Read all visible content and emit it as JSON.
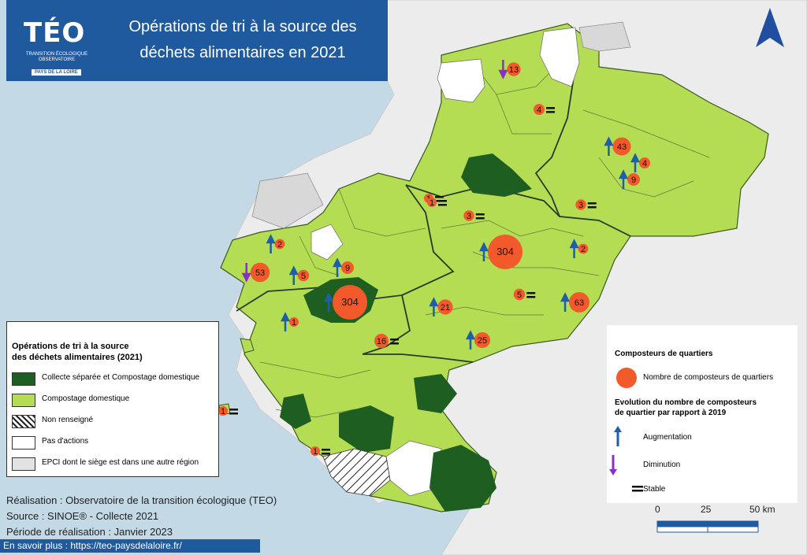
{
  "header": {
    "logo_main": "TÉO",
    "logo_sub": "TRANSITION ÉCOLOGIQUE OBSERVATOIRE",
    "logo_region": "PAYS DE LA LOIRE",
    "title_line1": "Opérations de tri à la source des",
    "title_line2": "déchets alimentaires en 2021"
  },
  "legend": {
    "title_line1": "Opérations de tri à la source",
    "title_line2": "des déchets alimentaires (2021)",
    "items": [
      {
        "label": "Collecte séparée et Compostage domestique",
        "color": "#1e5e20"
      },
      {
        "label": "Compostage domestique",
        "color": "#b5dd53"
      },
      {
        "label": "Non renseigné",
        "color": "hatched"
      },
      {
        "label": "Pas d'actions",
        "color": "#ffffff"
      },
      {
        "label": "EPCI dont le siège est dans une autre région",
        "color": "#e2e2e2"
      }
    ]
  },
  "legend2": {
    "title": "Composteurs de quartiers",
    "circle_label": "Nombre de composteurs de quartiers",
    "evolution_title_line1": "Evolution du nombre de composteurs",
    "evolution_title_line2": "de quartier par rapport à 2019",
    "increase": "Augmentation",
    "decrease": "Diminution",
    "stable": "Stable"
  },
  "credits": {
    "line1": "Réalisation : Observatoire de la transition écologique (TEO)",
    "line2": "Source : SINOE® - Collecte 2021",
    "line3": "Période de réalisation : Janvier 2023"
  },
  "footer": "En savoir plus : https://teo-paysdelaloire.fr/",
  "scale": {
    "s0": "0",
    "s1": "25",
    "s2": "50 km"
  },
  "colors": {
    "separate": "#1e5e20",
    "compost": "#b5dd53",
    "none": "#ffffff",
    "other_region": "#e2e2e2",
    "sea": "#c4d9e6",
    "circle": "#f2592b",
    "up_arrow": "#1f5fa8",
    "down_arrow": "#8b2fc9"
  },
  "markers": [
    {
      "value": "13",
      "trend": "down"
    },
    {
      "value": "4",
      "trend": "stable"
    },
    {
      "value": "43",
      "trend": "up"
    },
    {
      "value": "4",
      "trend": "up"
    },
    {
      "value": "9",
      "trend": "up"
    },
    {
      "value": "3",
      "trend": "stable"
    },
    {
      "value": "1",
      "trend": "stable"
    },
    {
      "value": "3",
      "trend": "stable"
    },
    {
      "value": "304",
      "trend": "up"
    },
    {
      "value": "2",
      "trend": "up"
    },
    {
      "value": "5",
      "trend": "stable"
    },
    {
      "value": "63",
      "trend": "up"
    },
    {
      "value": "21",
      "trend": "up"
    },
    {
      "value": "25",
      "trend": "up"
    },
    {
      "value": "16",
      "trend": "stable"
    },
    {
      "value": "1",
      "trend": "stable"
    },
    {
      "value": "2",
      "trend": "up"
    },
    {
      "value": "9",
      "trend": "up"
    },
    {
      "value": "53",
      "trend": "down"
    },
    {
      "value": "5",
      "trend": "up"
    },
    {
      "value": "304",
      "trend": "up"
    },
    {
      "value": "1",
      "trend": "up"
    },
    {
      "value": "1",
      "trend": "stable"
    },
    {
      "value": "1",
      "trend": "stable"
    }
  ]
}
